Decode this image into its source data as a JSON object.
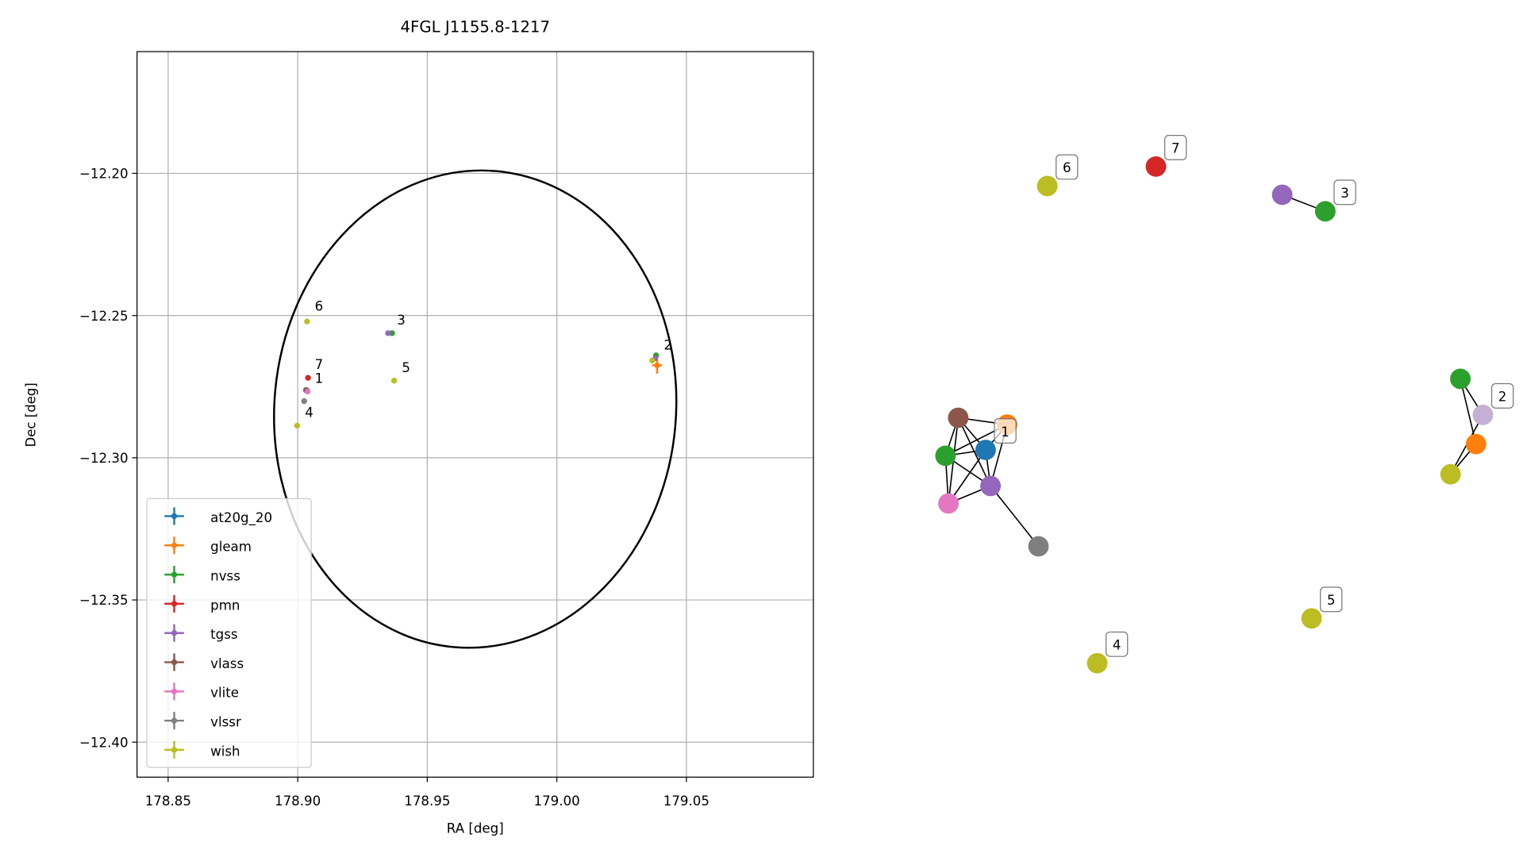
{
  "chart_data": [
    {
      "type": "scatter",
      "title": "4FGL J1155.8-1217",
      "x_label": "RA [deg]",
      "y_label": "Dec [deg]",
      "xlim": [
        178.838,
        179.099
      ],
      "ylim": [
        -12.4123,
        -12.1572
      ],
      "grid": true,
      "legend": "lower left",
      "xticks": [
        {
          "value": 178.85,
          "label": "178.85"
        },
        {
          "value": 178.9,
          "label": "178.90"
        },
        {
          "value": 178.95,
          "label": "178.95"
        },
        {
          "value": 179,
          "label": "179.00"
        },
        {
          "value": 179.05,
          "label": "179.05"
        }
      ],
      "yticks": [
        {
          "value": -12.2,
          "label": "−12.20"
        },
        {
          "value": -12.25,
          "label": "−12.25"
        },
        {
          "value": -12.3,
          "label": "−12.30"
        },
        {
          "value": -12.35,
          "label": "−12.35"
        },
        {
          "value": -12.4,
          "label": "−12.40"
        }
      ],
      "ellipse": {
        "center": [
          178.9685,
          -12.2829
        ],
        "width": 0.155,
        "height": 0.168,
        "angle": 5
      },
      "series": [
        {
          "name": "at20g_20",
          "color": "#1f77b4",
          "x": [
            178.9035
          ],
          "y": [
            -12.2765
          ]
        },
        {
          "name": "gleam",
          "color": "#ff7f0e",
          "x": [
            179.0387
          ],
          "y": [
            -12.2675
          ],
          "xerr": [
            0.0019
          ],
          "yerr": [
            0.003
          ]
        },
        {
          "name": "nvss",
          "color": "#2ca02c",
          "x": [
            178.9036,
            178.9364,
            179.0383
          ],
          "y": [
            -12.2763,
            -12.2562,
            -12.264
          ]
        },
        {
          "name": "pmn",
          "color": "#d62728",
          "x": [
            178.904
          ],
          "y": [
            -12.2719
          ]
        },
        {
          "name": "tgss",
          "color": "#9467bd",
          "x": [
            178.9038,
            178.9349,
            179.038
          ],
          "y": [
            -12.2766,
            -12.2562,
            -12.265
          ]
        },
        {
          "name": "vlass",
          "color": "#8c564b",
          "x": [
            178.9032
          ],
          "y": [
            -12.2762
          ]
        },
        {
          "name": "vlite",
          "color": "#e377c2",
          "x": [
            178.9038
          ],
          "y": [
            -12.2767
          ]
        },
        {
          "name": "vlssr",
          "color": "#7f7f7f",
          "x": [
            178.9025
          ],
          "y": [
            -12.2801
          ]
        },
        {
          "name": "wish",
          "color": "#bcbd22",
          "x": [
            178.9036,
            178.8998,
            178.9372,
            179.0368
          ],
          "y": [
            -12.2521,
            -12.2887,
            -12.2729,
            -12.2658
          ]
        }
      ],
      "annotations": [
        {
          "text": "1",
          "x": 178.9085,
          "y": -12.2719
        },
        {
          "text": "2",
          "x": 179.0432,
          "y": -12.2603
        },
        {
          "text": "3",
          "x": 178.9402,
          "y": -12.2514
        },
        {
          "text": "4",
          "x": 178.9047,
          "y": -12.2839
        },
        {
          "text": "5",
          "x": 178.9421,
          "y": -12.2682
        },
        {
          "text": "6",
          "x": 178.9085,
          "y": -12.2466
        },
        {
          "text": "7",
          "x": 178.9085,
          "y": -12.2671
        }
      ]
    },
    {
      "type": "network",
      "nodes": [
        {
          "color": "#8c564b"
        },
        {
          "color": "#ff7f0e"
        },
        {
          "color": "#2ca02c"
        },
        {
          "color": "#1f77b4"
        },
        {
          "color": "#9467bd"
        },
        {
          "color": "#e377c2"
        },
        {
          "color": "#7f7f7f"
        },
        {
          "color": "#bcbd22"
        },
        {
          "color": "#d62728"
        },
        {
          "color": "#9467bd"
        },
        {
          "color": "#2ca02c"
        },
        {
          "color": "#2ca02c"
        },
        {
          "color": "#c5b0d5"
        },
        {
          "color": "#ff7f0e"
        },
        {
          "color": "#bcbd22"
        },
        {
          "color": "#bcbd22"
        },
        {
          "color": "#bcbd22"
        }
      ],
      "edges": [
        [
          0,
          1
        ],
        [
          0,
          2
        ],
        [
          0,
          3
        ],
        [
          0,
          4
        ],
        [
          0,
          5
        ],
        [
          1,
          2
        ],
        [
          1,
          3
        ],
        [
          1,
          4
        ],
        [
          2,
          3
        ],
        [
          2,
          4
        ],
        [
          2,
          5
        ],
        [
          3,
          4
        ],
        [
          3,
          5
        ],
        [
          4,
          5
        ],
        [
          4,
          6
        ],
        [
          9,
          10
        ],
        [
          11,
          13
        ],
        [
          13,
          14
        ],
        [
          12,
          14
        ],
        [
          11,
          12
        ]
      ],
      "labels": [
        {
          "text": "1",
          "node": 3
        },
        {
          "text": "2",
          "node": 12
        },
        {
          "text": "3",
          "node": 10
        },
        {
          "text": "4",
          "node": 16
        },
        {
          "text": "5",
          "node": 15
        },
        {
          "text": "6",
          "node": 7
        },
        {
          "text": "7",
          "node": 8
        }
      ]
    }
  ]
}
